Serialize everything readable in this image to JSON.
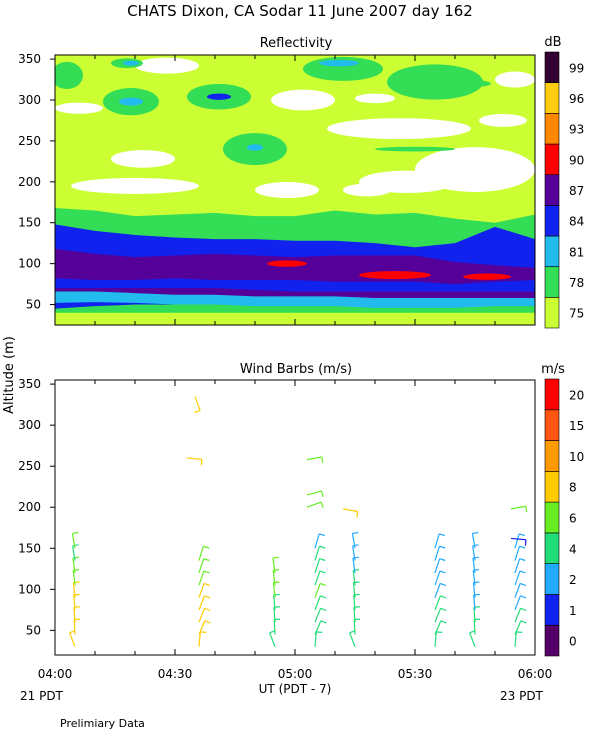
{
  "header": {
    "title": "CHATS Dixon, CA  Sodar  11 June 2007  day 162",
    "y_axis_label": "Altitude (m)",
    "x_axis_label": "UT  (PDT - 7)",
    "left_date": "21 PDT",
    "right_date": "23 PDT",
    "footer_note": "Prelimiary Data"
  },
  "chart_data": [
    {
      "type": "heatmap",
      "title": "Reflectivity",
      "x_ticks": [
        "04:00",
        "04:30",
        "05:00",
        "05:30",
        "06:00"
      ],
      "x_range": [
        0,
        120
      ],
      "y_ticks": [
        50,
        100,
        150,
        200,
        250,
        300,
        350
      ],
      "y_range": [
        25,
        355
      ],
      "colorbar": {
        "unit": "dB",
        "labels": [
          "75",
          "78",
          "81",
          "84",
          "87",
          "90",
          "93",
          "96",
          "99"
        ],
        "colors": [
          "#ccff33",
          "#33dd55",
          "#22bbee",
          "#1122ee",
          "#550099",
          "#ff0000",
          "#ff8800",
          "#ffcc11",
          "#330033"
        ]
      },
      "bands": [
        {
          "level": "84",
          "lower": [
            45,
            48,
            50,
            50,
            50,
            52,
            52,
            52,
            50,
            50,
            50,
            50,
            52
          ],
          "upper": [
            148,
            140,
            135,
            132,
            130,
            130,
            128,
            128,
            125,
            120,
            125,
            145,
            130
          ]
        },
        {
          "level": "87",
          "lower": [
            62,
            63,
            62,
            60,
            60,
            58,
            55,
            55,
            55,
            55,
            55,
            55,
            55
          ],
          "upper": [
            118,
            112,
            108,
            110,
            112,
            110,
            108,
            110,
            110,
            110,
            102,
            98,
            95
          ]
        },
        {
          "level": "84",
          "lower": [
            70,
            70,
            70,
            70,
            70,
            68,
            66,
            66,
            66,
            66,
            66,
            66,
            66
          ],
          "upper": [
            82,
            80,
            80,
            82,
            80,
            80,
            80,
            78,
            78,
            78,
            75,
            78,
            80
          ]
        },
        {
          "level": "81",
          "lower": [
            52,
            53,
            52,
            50,
            50,
            48,
            48,
            48,
            46,
            46,
            46,
            48,
            48
          ],
          "upper": [
            66,
            66,
            64,
            62,
            62,
            60,
            60,
            60,
            58,
            58,
            58,
            58,
            58
          ]
        }
      ],
      "cells": [
        {
          "level": "90",
          "x": 58,
          "y": 100,
          "rx": 5,
          "ry": 4
        },
        {
          "level": "90",
          "x": 85,
          "y": 86,
          "rx": 9,
          "ry": 5
        },
        {
          "level": "90",
          "x": 108,
          "y": 84,
          "rx": 6,
          "ry": 4
        },
        {
          "level": "78",
          "x": 102,
          "y": 320,
          "rx": 7,
          "ry": 5
        },
        {
          "level": "78",
          "x": 3,
          "y": 335,
          "rx": 3,
          "ry": 10
        },
        {
          "level": "81",
          "x": 19,
          "y": 345,
          "rx": 2,
          "ry": 3
        },
        {
          "level": "81",
          "x": 19,
          "y": 298,
          "rx": 3,
          "ry": 5
        },
        {
          "level": "84",
          "x": 41,
          "y": 304,
          "rx": 3,
          "ry": 4
        },
        {
          "level": "81",
          "x": 50,
          "y": 242,
          "rx": 2,
          "ry": 4
        },
        {
          "level": "81",
          "x": 71,
          "y": 345,
          "rx": 5,
          "ry": 4
        }
      ],
      "greens": [
        {
          "x": 18,
          "y": 345,
          "rx": 4,
          "ry": 6
        },
        {
          "x": 19,
          "y": 298,
          "rx": 7,
          "ry": 17
        },
        {
          "x": 41,
          "y": 304,
          "rx": 8,
          "ry": 16
        },
        {
          "x": 50,
          "y": 240,
          "rx": 8,
          "ry": 20
        },
        {
          "x": 72,
          "y": 338,
          "rx": 10,
          "ry": 15
        },
        {
          "x": 95,
          "y": 322,
          "rx": 12,
          "ry": 22
        },
        {
          "x": 3,
          "y": 330,
          "rx": 4,
          "ry": 17
        },
        {
          "x": 90,
          "y": 240,
          "rx": 10,
          "ry": 3
        }
      ],
      "whites": [
        {
          "x": 28,
          "y": 342,
          "rx": 8,
          "ry": 10
        },
        {
          "x": 6,
          "y": 290,
          "rx": 6,
          "ry": 7
        },
        {
          "x": 22,
          "y": 228,
          "rx": 8,
          "ry": 11
        },
        {
          "x": 20,
          "y": 195,
          "rx": 16,
          "ry": 10
        },
        {
          "x": 62,
          "y": 300,
          "rx": 8,
          "ry": 13
        },
        {
          "x": 86,
          "y": 265,
          "rx": 18,
          "ry": 13
        },
        {
          "x": 80,
          "y": 302,
          "rx": 5,
          "ry": 6
        },
        {
          "x": 105,
          "y": 215,
          "rx": 15,
          "ry": 28
        },
        {
          "x": 88,
          "y": 200,
          "rx": 12,
          "ry": 14
        },
        {
          "x": 58,
          "y": 190,
          "rx": 8,
          "ry": 10
        },
        {
          "x": 78,
          "y": 190,
          "rx": 6,
          "ry": 8
        },
        {
          "x": 115,
          "y": 325,
          "rx": 5,
          "ry": 10
        },
        {
          "x": 112,
          "y": 275,
          "rx": 6,
          "ry": 8
        }
      ]
    },
    {
      "type": "scatter",
      "title": "Wind Barbs (m/s)",
      "x_ticks": [
        "04:00",
        "04:30",
        "05:00",
        "05:30",
        "06:00"
      ],
      "x_range": [
        0,
        120
      ],
      "y_ticks": [
        50,
        100,
        150,
        200,
        250,
        300,
        350
      ],
      "y_range": [
        20,
        355
      ],
      "colorbar": {
        "unit": "m/s",
        "labels": [
          "0",
          "1",
          "2",
          "4",
          "6",
          "8",
          "10",
          "15",
          "20"
        ],
        "colors": [
          "#550066",
          "#1122ee",
          "#22aaff",
          "#22dd77",
          "#66ee22",
          "#ffcc00",
          "#ff9900",
          "#ff5511",
          "#ff0000"
        ]
      },
      "columns": [
        {
          "x": 5,
          "ys": [
            30,
            45,
            60,
            75,
            90,
            105,
            120,
            135,
            150
          ],
          "lv": [
            "8",
            "8",
            "8",
            "8",
            "8",
            "6",
            "6",
            "4",
            "6"
          ]
        },
        {
          "x": 36,
          "ys": [
            30,
            45,
            60,
            75,
            90,
            105,
            120,
            135
          ],
          "lv": [
            "8",
            "8",
            "8",
            "8",
            "8",
            "6",
            "6",
            "6"
          ]
        },
        {
          "x": 55,
          "ys": [
            30,
            45,
            60,
            75,
            90,
            105,
            120
          ],
          "lv": [
            "4",
            "4",
            "4",
            "4",
            "6",
            "6",
            "6"
          ]
        },
        {
          "x": 65,
          "ys": [
            30,
            45,
            60,
            75,
            90,
            105,
            120,
            135,
            150
          ],
          "lv": [
            "4",
            "4",
            "4",
            "4",
            "6",
            "4",
            "4",
            "4",
            "2"
          ]
        },
        {
          "x": 75,
          "ys": [
            30,
            45,
            60,
            75,
            90,
            105,
            120,
            135,
            150
          ],
          "lv": [
            "4",
            "4",
            "4",
            "4",
            "4",
            "4",
            "2",
            "2",
            "2"
          ]
        },
        {
          "x": 95,
          "ys": [
            30,
            45,
            60,
            75,
            90,
            105,
            120,
            135,
            150
          ],
          "lv": [
            "4",
            "4",
            "4",
            "4",
            "2",
            "2",
            "2",
            "2",
            "2"
          ]
        },
        {
          "x": 105,
          "ys": [
            30,
            45,
            60,
            75,
            90,
            105,
            120,
            135,
            150
          ],
          "lv": [
            "4",
            "4",
            "4",
            "2",
            "2",
            "2",
            "2",
            "2",
            "2"
          ]
        },
        {
          "x": 115,
          "ys": [
            30,
            45,
            60,
            75,
            90,
            105,
            120,
            135,
            150
          ],
          "lv": [
            "4",
            "4",
            "4",
            "2",
            "2",
            "2",
            "2",
            "2",
            "2"
          ]
        }
      ],
      "singles": [
        {
          "x": 35,
          "y": 335,
          "lv": "8",
          "ang": 160
        },
        {
          "x": 33,
          "y": 260,
          "lv": "8",
          "ang": 95
        },
        {
          "x": 63,
          "y": 258,
          "lv": "6",
          "ang": 80
        },
        {
          "x": 63,
          "y": 215,
          "lv": "6",
          "ang": 75
        },
        {
          "x": 63,
          "y": 200,
          "lv": "6",
          "ang": 70
        },
        {
          "x": 72,
          "y": 198,
          "lv": "8",
          "ang": 100
        },
        {
          "x": 114,
          "y": 198,
          "lv": "6",
          "ang": 80
        },
        {
          "x": 114,
          "y": 162,
          "lv": "1",
          "ang": 95
        }
      ]
    }
  ]
}
